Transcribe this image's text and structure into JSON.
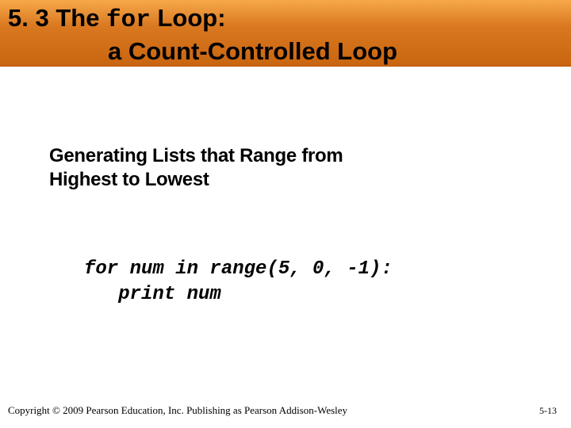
{
  "slide": {
    "title_prefix": "5. 3 The ",
    "title_code": "for",
    "title_suffix": " Loop:",
    "title_line2": "a Count-Controlled Loop",
    "subheading_line1": "Generating Lists that Range from",
    "subheading_line2": "Highest to Lowest",
    "code_line1": "for num in range(5, 0, -1):",
    "code_line2": "   print num",
    "footer_copyright": "Copyright © 2009 Pearson Education, Inc. Publishing as Pearson Addison-Wesley",
    "footer_pagenum": "5-13"
  },
  "colors": {
    "header_gradient_top": "#f7a84a",
    "header_gradient_mid": "#d97820",
    "header_gradient_bottom": "#c96510",
    "background": "#ffffff",
    "text": "#000000"
  },
  "typography": {
    "title_fontsize": 31,
    "title_weight": "bold",
    "subheading_fontsize": 24,
    "subheading_weight": "900",
    "code_fontsize": 24,
    "code_family": "Courier New",
    "footer_fontsize": 13
  }
}
